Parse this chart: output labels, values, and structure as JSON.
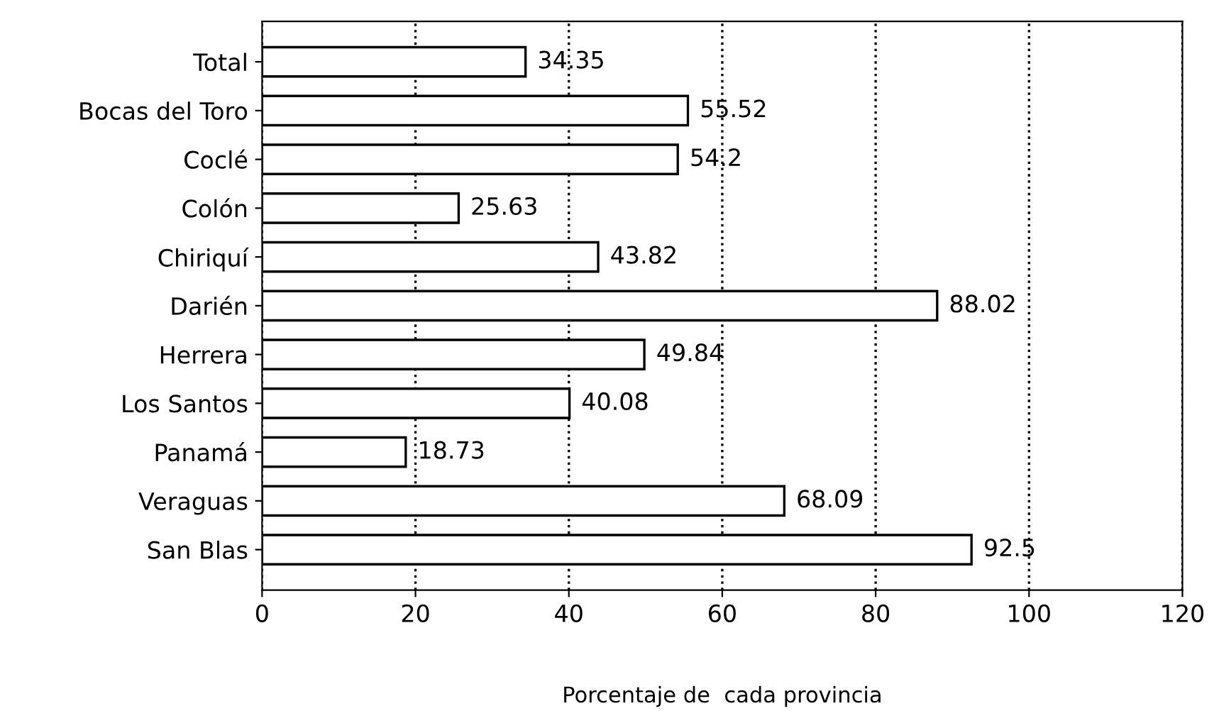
{
  "chart_data": {
    "type": "bar",
    "orientation": "horizontal",
    "xlabel": "Porcentaje de  cada provincia",
    "categories": [
      "Total",
      "Bocas del Toro",
      "Coclé",
      "Colón",
      "Chiriquí",
      "Darién",
      "Herrera",
      "Los Santos",
      "Panamá",
      "Veraguas",
      "San Blas"
    ],
    "values": [
      34.35,
      55.52,
      54.2,
      25.63,
      43.82,
      88.02,
      49.84,
      40.08,
      18.73,
      68.09,
      92.5
    ],
    "color": "#ffffff",
    "data_labels": true,
    "xlim": [
      0,
      120
    ],
    "xticks": [
      0,
      20,
      40,
      60,
      80,
      100,
      120
    ],
    "grid": "x",
    "line_style": "dotted"
  }
}
